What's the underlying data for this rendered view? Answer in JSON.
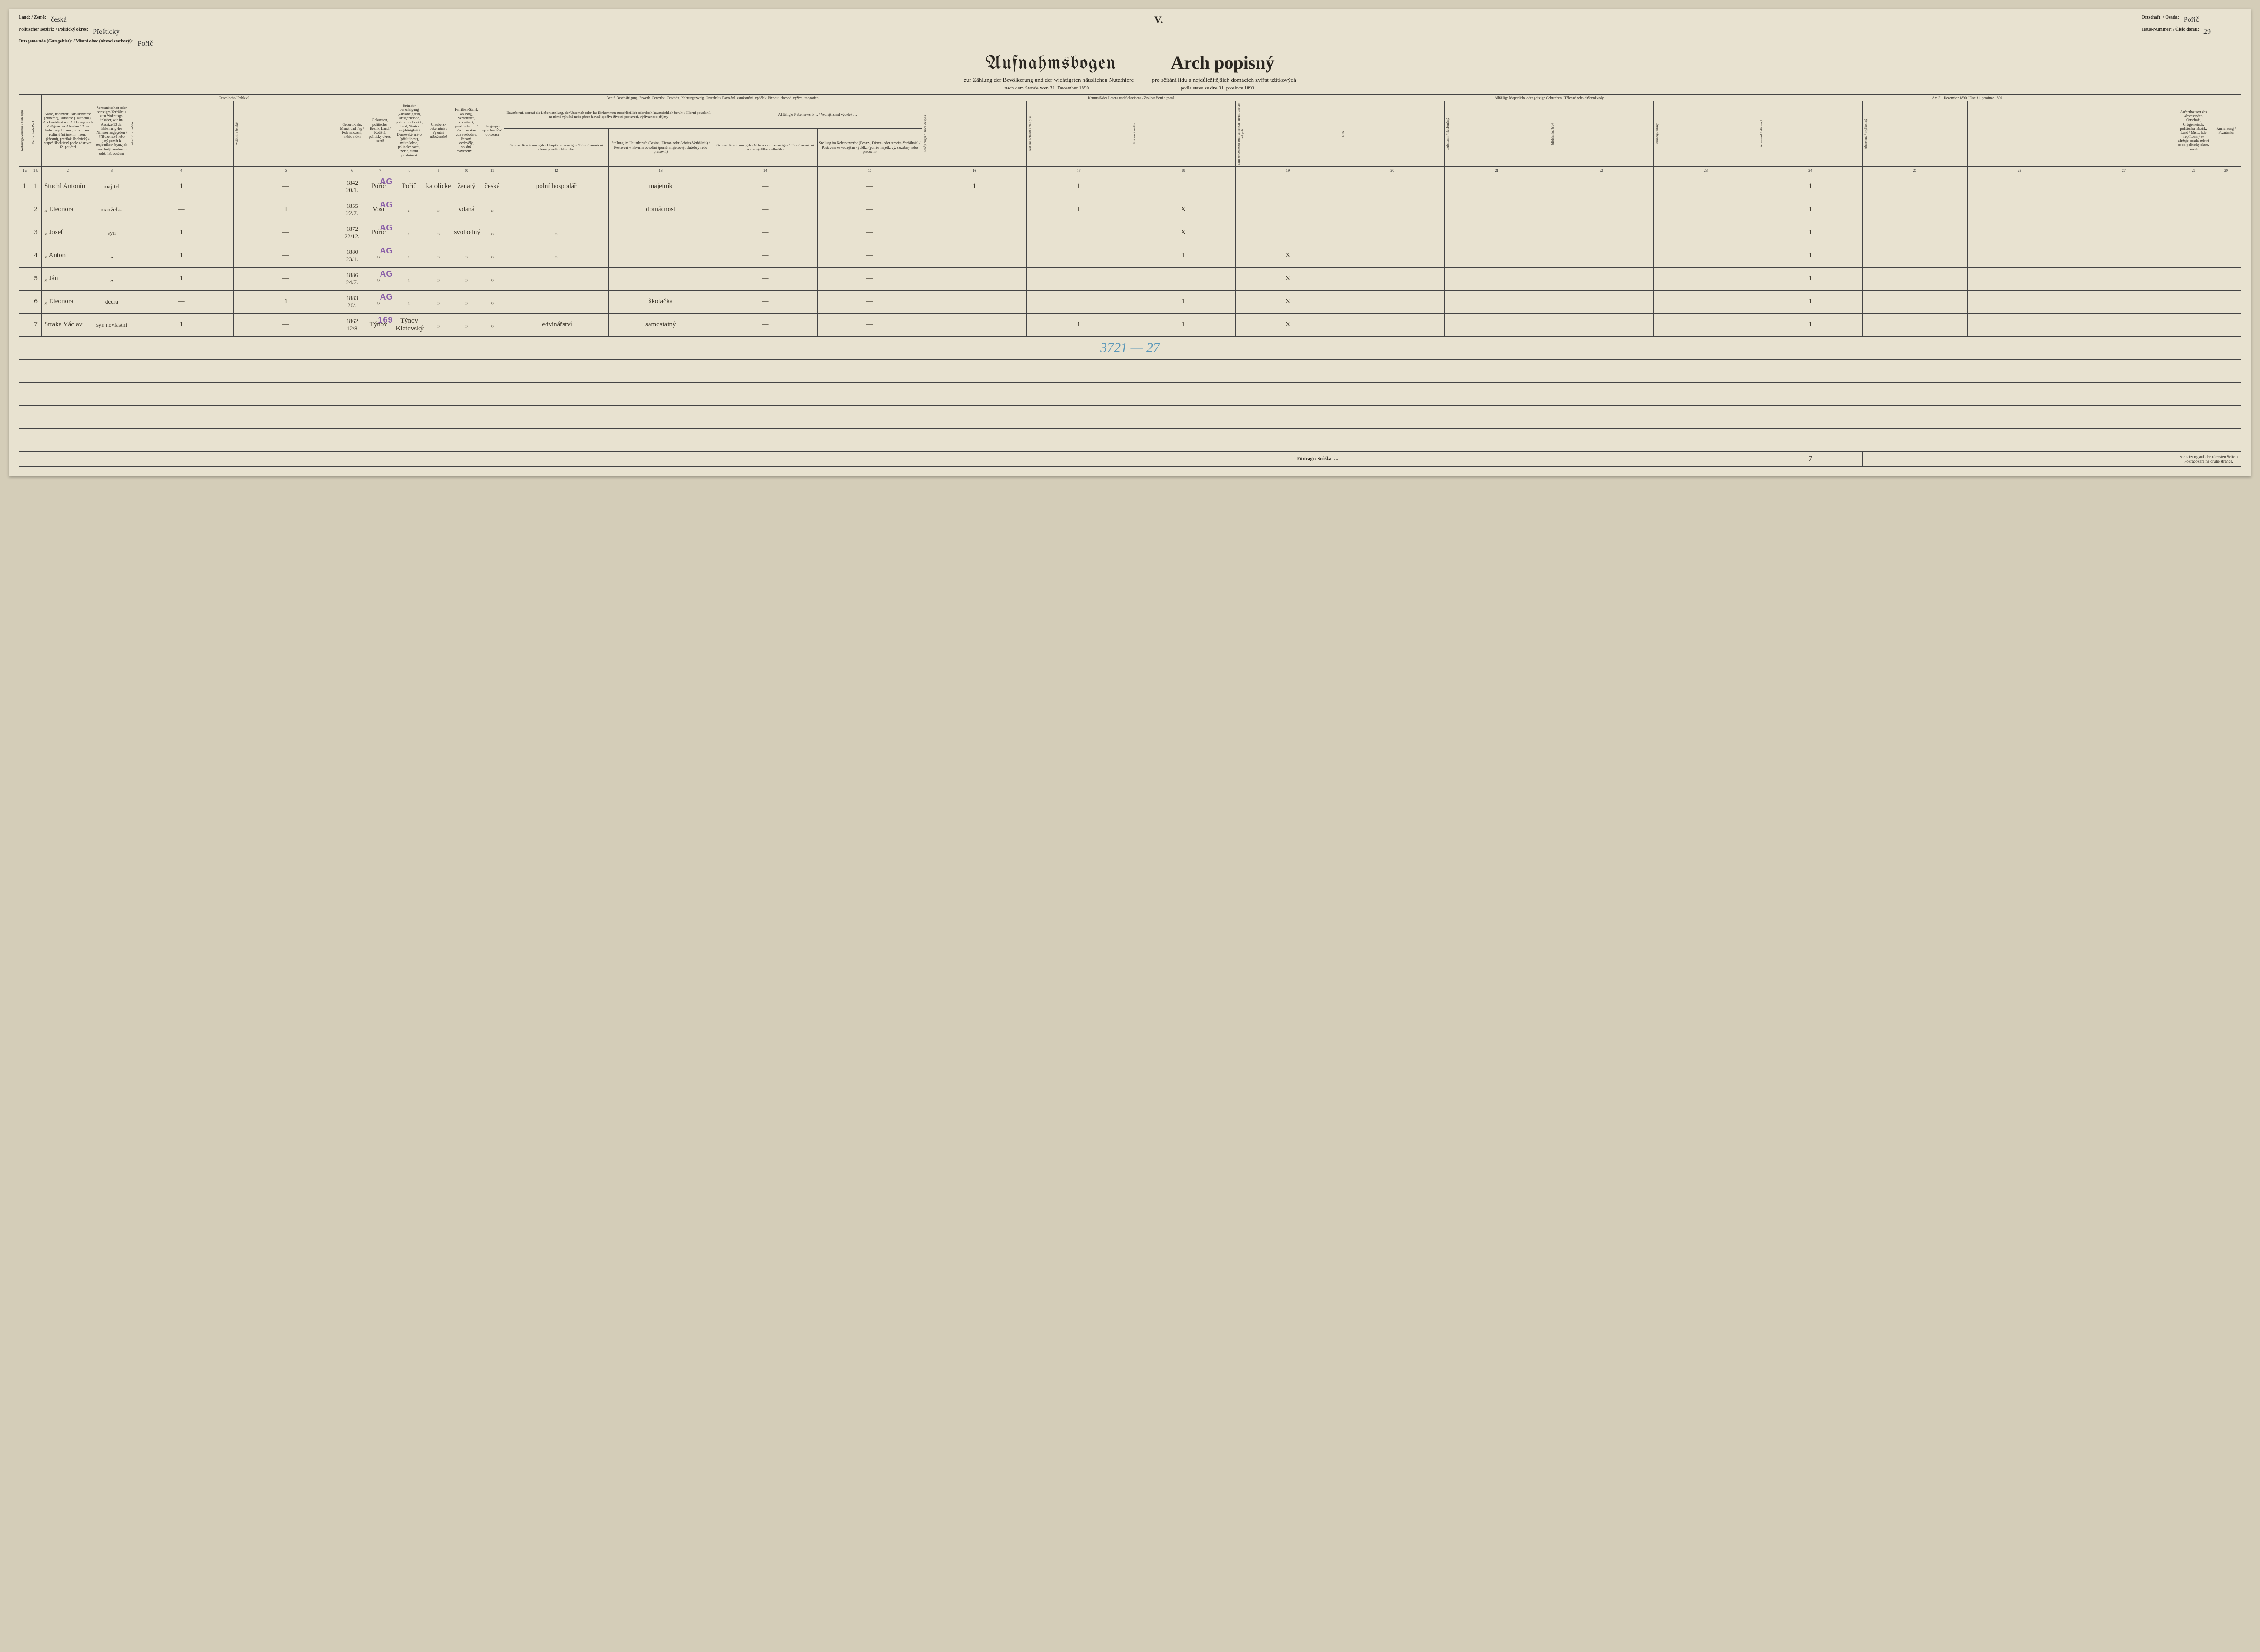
{
  "header": {
    "land_label": "Land: / Země:",
    "land_value": "česká",
    "bezirk_label": "Politischer Bezirk: / Politický okres:",
    "bezirk_value": "Přeštický",
    "ortsgemeinde_label": "Ortsgemeinde (Gutsgebiet): / Místní obec (obvod statkový):",
    "ortsgemeinde_value": "Pořič",
    "ortschaft_label": "Ortschaft: / Osada:",
    "ortschaft_value": "Pořič",
    "hausnr_label": "Haus-Nummer: / Číslo domu:",
    "hausnr_value": "29",
    "roman": "V.",
    "title_de": "Aufnahmsbogen",
    "title_cz": "Arch popisný",
    "subtitle_de": "zur Zählung der Bevölkerung und der wichtigsten häuslichen Nutzthiere",
    "subtitle_cz": "pro sčítání lidu a nejdůležitějších domácích zvířat užitkových",
    "date_de": "nach dem Stande vom 31. December 1890.",
    "date_cz": "podle stavu ze dne 31. prosince 1890."
  },
  "columns": {
    "c1a": "Wohnungs-Nummer / Číslo bytu",
    "c1b": "Fortlaufende Zahl…",
    "c2": "Name, und zwar: Familienname (Zuname), Vorname (Taufname), Adelsprädicat und Adelsrang nach Maßgabe des Absatzes 12 der Belehrung / Jméno, a to: jméno rodinné (příjmení), jméno (křestní), predikát šlechtický a stupeň šlechtický podle odstavce 12. poučení",
    "c3": "Verwandtschaft oder sonstiges Verhältnis zum Wohnungs-inhaber, wie im Absatze 13 der Belehrung des Näheren angegeben / Příbuzenství nebo jiný poměr k majetníkovi bytu, jak zevrubněji uvedeno v odst. 13. poučení",
    "c4_group": "Geschlecht / Pohlaví",
    "c4": "männlich / mužské",
    "c5": "weiblich / ženské",
    "c6": "Geburts-Jahr, Monat und Tag / Rok narození, měsíc a den",
    "c7": "Geburtsort, politischer Bezirk, Land / Rodiště, politický okres, země",
    "c8": "Heimats-berechtigung (Zuständigkeit), Ortsgemeinde, politischer Bezirk, Land, Staats-angehörigkeit / Domovské právo (příslušnost), místní obec, politický okres, země, státní příslušnost",
    "c9": "Glaubens-bekenntnis / Vyznání náboženské",
    "c10": "Familien-Stand, ob ledig, verheiratet, verwitwet, geschieden … / Rodinný stav, zda svobodný, ženatý, ovdovělý, soudně rozvedený …",
    "c11": "Umgangs-sprache / Řeč obcovací",
    "c12_group": "Beruf, Beschäftigung, Erwerb, Gewerbe, Geschäft, Nahrungszweig, Unterhalt / Povolání, zaměstnání, výdělek, živnost, obchod, výživa, zaopatření",
    "c12": "Hauptberuf, worauf die Lebensstellung, der Unterhalt oder das Einkommen ausschließlich oder doch hauptsächlich beruht / Hlavní povolání, na němž výlučně nebo přece hlavně spočívá životní postavení, výživa nebo příjmy",
    "c12a": "Genaue Bezeichnung des Hauptberufszweiges / Přesné označení oboru povolání hlavního",
    "c13": "Stellung im Hauptberufe (Besitz-, Dienst- oder Arbeits-Verhältnis) / Postavení v hlavním povolání (poměr majetkový, služebný nebo pracovní)",
    "c14_group": "Allfälliger Nebenerwerb … / Vedlejší snad výdělek …",
    "c14": "Genaue Bezeichnung des Nebenerwerbs-zweiges / Přesné označení oboru výdělku vedlejšího",
    "c15": "Stellung im Nebenerwerbe (Besitz-, Dienst- oder Arbeits-Verhältnis) / Postavení ve vedlejším výdělku (poměr majetkový, služebný nebo pracovní)",
    "c16_group": "Kenntniß des Lesens und Schreibens / Znalost čtení a psaní",
    "c16": "Großjähriger / Osoba dospělá",
    "c17": "liest und schreibt / čte i píše",
    "c18": "liest nur / jen čte",
    "c19": "kann weder lesen noch schreiben / neumí ani číst ani psát",
    "c20_group": "Allfällige körperliche oder geistige Gebrechen / Tělesné nebo duševní vady",
    "c20": "blind",
    "c21": "taubstumm / hluchoněmý",
    "c22": "blödsinnig / blbý",
    "c23": "irrsinnig / šílený",
    "c24_group": "Am 31. December 1890 / Dne 31. prosince 1890",
    "c24": "Anwesend / přítomný",
    "c25": "Abwesend / nepřítomný",
    "c26": "",
    "c27": "",
    "c28": "Aufenthaltsort des Abwesenden, Ortschaft, Ortsgemeinde, politischer Bezirk, Land / Místo, kde nepřítomný se zdržuje, osada, místní obec, politický okres, země",
    "c29": "Anmerkung / Poznámka"
  },
  "colnums": [
    "1 a",
    "1 b",
    "2",
    "3",
    "4",
    "5",
    "6",
    "7",
    "8",
    "9",
    "10",
    "11",
    "12",
    "13",
    "14",
    "15",
    "16",
    "17",
    "18",
    "19",
    "20",
    "21",
    "22",
    "23",
    "24",
    "25",
    "26",
    "27",
    "28",
    "29"
  ],
  "rows": [
    {
      "wnr": "1",
      "lnr": "1",
      "name": "Stuchl Antonín",
      "rel": "majitel",
      "m": "1",
      "f": "—",
      "birth": "1842\n20/1.",
      "place": "Pořič",
      "dom": "Pořič",
      "relig": "katolícke",
      "mar": "ženatý",
      "lang": "česká",
      "occ": "polní hospodář",
      "pos": "majetník",
      "side": "—",
      "side2": "—",
      "lit": [
        "1",
        "1",
        "",
        ""
      ],
      "def": [
        "",
        "",
        "",
        ""
      ],
      "pres": [
        "1",
        "",
        "",
        ""
      ],
      "where": "",
      "note": "",
      "stamp": "AG",
      "bluescrawl": ""
    },
    {
      "wnr": "",
      "lnr": "2",
      "name": "„ Eleonora",
      "rel": "manželka",
      "m": "—",
      "f": "1",
      "birth": "1855\n22/7.",
      "place": "Vosí",
      "dom": "„",
      "relig": "„",
      "mar": "vdaná",
      "lang": "„",
      "occ": "",
      "pos": "domácnost",
      "side": "—",
      "side2": "—",
      "lit": [
        "",
        "1",
        "X",
        ""
      ],
      "def": [
        "",
        "",
        "",
        ""
      ],
      "pres": [
        "1",
        "",
        "",
        ""
      ],
      "where": "",
      "note": "",
      "stamp": "AG",
      "bluescrawl": ""
    },
    {
      "wnr": "",
      "lnr": "3",
      "name": "„ Josef",
      "rel": "syn",
      "m": "1",
      "f": "—",
      "birth": "1872\n22/12.",
      "place": "Pořič",
      "dom": "„",
      "relig": "„",
      "mar": "svobodný",
      "lang": "„",
      "occ": "„",
      "pos": "",
      "side": "—",
      "side2": "—",
      "lit": [
        "",
        "",
        "X",
        ""
      ],
      "def": [
        "",
        "",
        "",
        ""
      ],
      "pres": [
        "1",
        "",
        "",
        ""
      ],
      "where": "",
      "note": "",
      "stamp": "AG",
      "bluescrawl": "a"
    },
    {
      "wnr": "",
      "lnr": "4",
      "name": "„ Anton",
      "rel": "„",
      "m": "1",
      "f": "—",
      "birth": "1880\n23/1.",
      "place": "„",
      "dom": "„",
      "relig": "„",
      "mar": "„",
      "lang": "„",
      "occ": "„",
      "pos": "",
      "side": "—",
      "side2": "—",
      "lit": [
        "",
        "",
        "1",
        "X"
      ],
      "def": [
        "",
        "",
        "",
        ""
      ],
      "pres": [
        "1",
        "",
        "",
        ""
      ],
      "where": "",
      "note": "",
      "stamp": "AG",
      "bluescrawl": "10"
    },
    {
      "wnr": "",
      "lnr": "5",
      "name": "„ Ján",
      "rel": "„",
      "m": "1",
      "f": "—",
      "birth": "1886\n24/7.",
      "place": "„",
      "dom": "„",
      "relig": "„",
      "mar": "„",
      "lang": "„",
      "occ": "",
      "pos": "",
      "side": "—",
      "side2": "—",
      "lit": [
        "",
        "",
        "",
        "X"
      ],
      "def": [
        "",
        "",
        "",
        ""
      ],
      "pres": [
        "1",
        "",
        "",
        ""
      ],
      "where": "",
      "note": "",
      "stamp": "AG",
      "bluescrawl": "4"
    },
    {
      "wnr": "",
      "lnr": "6",
      "name": "„ Eleonora",
      "rel": "dcera",
      "m": "—",
      "f": "1",
      "birth": "1883\n20/.",
      "place": "„",
      "dom": "„",
      "relig": "„",
      "mar": "„",
      "lang": "„",
      "occ": "",
      "pos": "školačka",
      "side": "—",
      "side2": "—",
      "lit": [
        "",
        "",
        "1",
        "X"
      ],
      "def": [
        "",
        "",
        "",
        ""
      ],
      "pres": [
        "1",
        "",
        "",
        ""
      ],
      "where": "",
      "note": "",
      "stamp": "AG",
      "bluescrawl": "7½"
    },
    {
      "wnr": "",
      "lnr": "7",
      "name": "Straka Václav",
      "rel": "syn nevlastní",
      "m": "1",
      "f": "—",
      "birth": "1862\n12/8",
      "place": "Týnov",
      "dom": "Týnov Klatovský",
      "relig": "„",
      "mar": "„",
      "lang": "„",
      "occ": "ledvinářství",
      "pos": "samostatný",
      "side": "—",
      "side2": "—",
      "lit": [
        "",
        "1",
        "1",
        "X"
      ],
      "def": [
        "",
        "",
        "",
        ""
      ],
      "pres": [
        "1",
        "",
        "",
        ""
      ],
      "where": "",
      "note": "",
      "stamp": "169",
      "bluescrawl": "044"
    }
  ],
  "bottom_scrawl": "3721 — 27",
  "footer": {
    "fuertrag": "Fürtrag: / Snáška: …",
    "sum": "7",
    "continue": "Fortsetzung auf der nächsten Seite. / Pokračování na druhé stránce."
  },
  "colors": {
    "paper": "#e8e2d0",
    "ink": "#2a2620",
    "stamp": "#8a5fa8",
    "blue": "#5996b8",
    "border": "#444"
  }
}
